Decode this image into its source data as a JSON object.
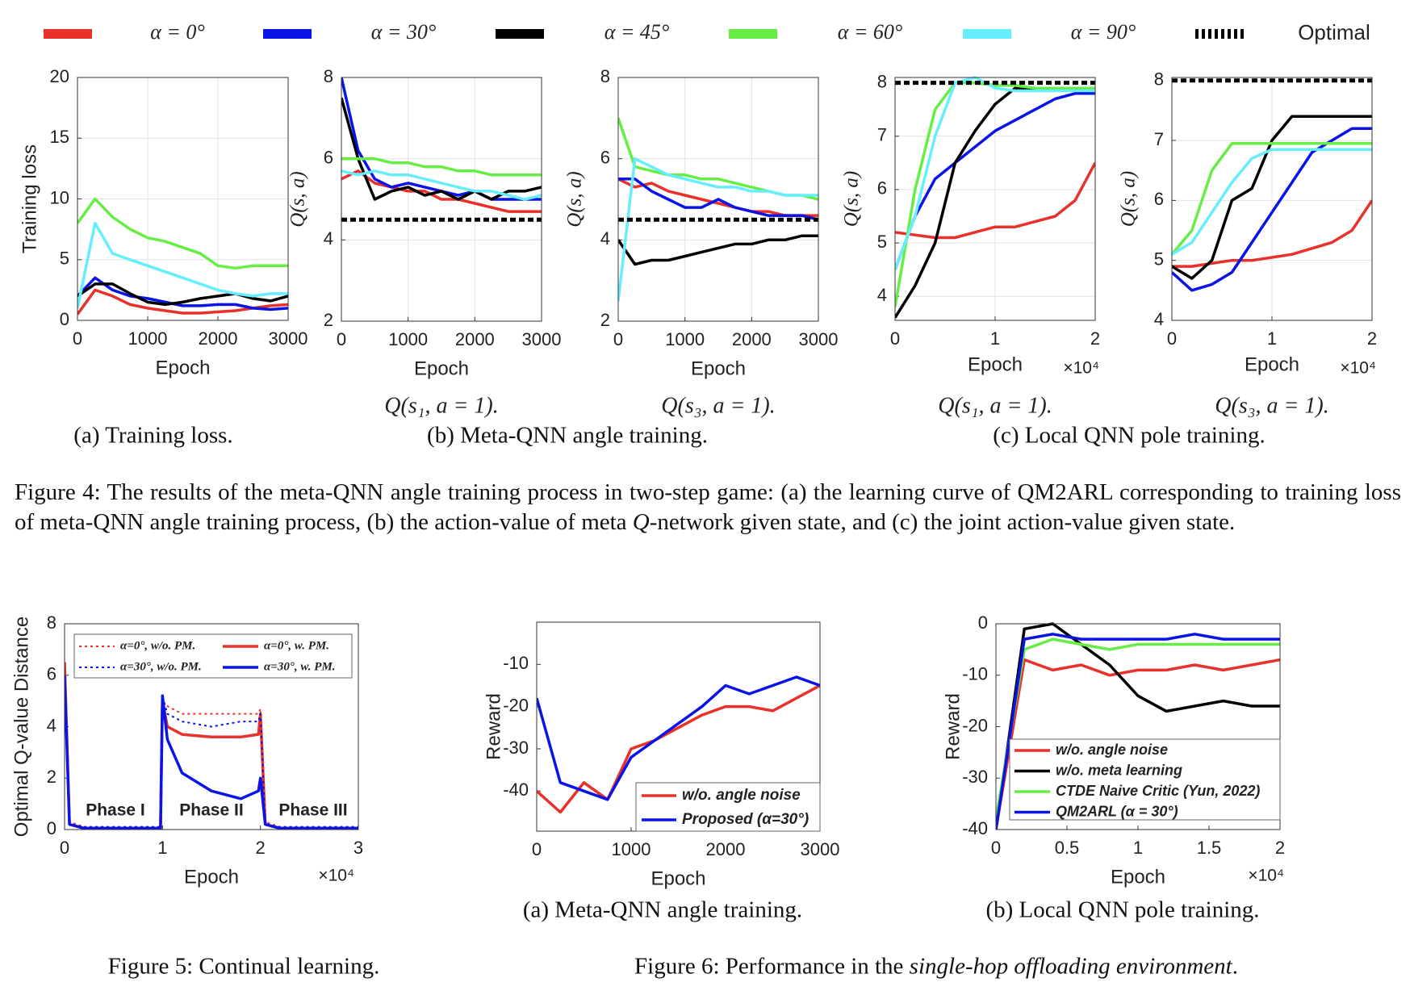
{
  "chart_data": [
    {
      "type": "line",
      "xlabel": "Epoch",
      "ylabel": "Training loss",
      "grid": true,
      "x": [
        0,
        250,
        500,
        750,
        1000,
        1250,
        1500,
        1750,
        2000,
        2250,
        2500,
        2750,
        3000
      ],
      "xlim": [
        0,
        3000
      ],
      "ylim": [
        0,
        20
      ],
      "xticks": [
        0,
        1000,
        2000,
        3000
      ],
      "yticks": [
        0,
        5,
        10,
        15,
        20
      ],
      "series": [
        {
          "name": "α = 0°",
          "color": "#e8312a",
          "values": [
            0.5,
            2.5,
            2,
            1.3,
            1,
            0.8,
            0.6,
            0.6,
            0.7,
            0.8,
            1,
            1.2,
            1.3
          ]
        },
        {
          "name": "α = 30°",
          "color": "#0a14e6",
          "values": [
            2,
            3.5,
            2.5,
            2,
            1.8,
            1.5,
            1.2,
            1.2,
            1.3,
            1.3,
            1,
            0.9,
            1
          ]
        },
        {
          "name": "α = 45°",
          "color": "#000000",
          "values": [
            2,
            3,
            3,
            2.2,
            1.5,
            1.3,
            1.5,
            1.8,
            2,
            2.2,
            1.8,
            1.6,
            2
          ]
        },
        {
          "name": "α = 60°",
          "color": "#66ee44",
          "values": [
            8,
            10,
            8.5,
            7.5,
            6.8,
            6.5,
            6,
            5.5,
            4.5,
            4.3,
            4.5,
            4.5,
            4.5
          ]
        },
        {
          "name": "α = 90°",
          "color": "#66eeff",
          "values": [
            1,
            8,
            5.5,
            5,
            4.5,
            4,
            3.5,
            3,
            2.5,
            2.2,
            2,
            2.2,
            2.2
          ]
        }
      ],
      "legend": "top"
    },
    {
      "type": "line",
      "xlabel": "Epoch",
      "ylabel": "Q(s, a)",
      "subtitle": "Q(s₁, a = 1).",
      "grid": true,
      "x": [
        0,
        250,
        500,
        750,
        1000,
        1250,
        1500,
        1750,
        2000,
        2250,
        2500,
        2750,
        3000
      ],
      "xlim": [
        0,
        3000
      ],
      "ylim": [
        2,
        8
      ],
      "xticks": [
        0,
        1000,
        2000,
        3000
      ],
      "yticks": [
        2,
        4,
        6,
        8
      ],
      "series": [
        {
          "color": "#e8312a",
          "values": [
            5.5,
            5.7,
            5.4,
            5.3,
            5.2,
            5.2,
            5,
            5,
            4.9,
            4.8,
            4.7,
            4.7,
            4.7
          ]
        },
        {
          "color": "#0a14e6",
          "values": [
            8,
            6.2,
            5.5,
            5.3,
            5.4,
            5.3,
            5.2,
            5.1,
            5.2,
            5,
            5,
            5,
            5
          ]
        },
        {
          "color": "#000000",
          "values": [
            7.5,
            6,
            5,
            5.2,
            5.3,
            5.1,
            5.2,
            5,
            5.2,
            5,
            5.2,
            5.2,
            5.3
          ]
        },
        {
          "color": "#66ee44",
          "values": [
            6,
            6,
            6,
            5.9,
            5.9,
            5.8,
            5.8,
            5.7,
            5.7,
            5.6,
            5.6,
            5.6,
            5.6
          ]
        },
        {
          "color": "#66eeff",
          "values": [
            5.7,
            5.6,
            5.7,
            5.6,
            5.6,
            5.5,
            5.4,
            5.3,
            5.2,
            5.2,
            5.1,
            5,
            5.1
          ]
        },
        {
          "name": "Optimal",
          "color": "#000000",
          "style": "dashed",
          "values": [
            4.5,
            4.5,
            4.5,
            4.5,
            4.5,
            4.5,
            4.5,
            4.5,
            4.5,
            4.5,
            4.5,
            4.5,
            4.5
          ]
        }
      ]
    },
    {
      "type": "line",
      "xlabel": "Epoch",
      "ylabel": "Q(s, a)",
      "subtitle": "Q(s₃, a = 1).",
      "grid": true,
      "x": [
        0,
        250,
        500,
        750,
        1000,
        1250,
        1500,
        1750,
        2000,
        2250,
        2500,
        2750,
        3000
      ],
      "xlim": [
        0,
        3000
      ],
      "ylim": [
        2,
        8
      ],
      "xticks": [
        0,
        1000,
        2000,
        3000
      ],
      "yticks": [
        2,
        4,
        6,
        8
      ],
      "series": [
        {
          "color": "#e8312a",
          "values": [
            5.5,
            5.3,
            5.4,
            5.2,
            5.1,
            5,
            4.9,
            4.8,
            4.7,
            4.7,
            4.6,
            4.6,
            4.6
          ]
        },
        {
          "color": "#0a14e6",
          "values": [
            5.5,
            5.5,
            5.2,
            5,
            4.8,
            4.8,
            5,
            4.8,
            4.7,
            4.6,
            4.6,
            4.6,
            4.5
          ]
        },
        {
          "color": "#000000",
          "values": [
            4,
            3.4,
            3.5,
            3.5,
            3.6,
            3.7,
            3.8,
            3.9,
            3.9,
            4,
            4,
            4.1,
            4.1
          ]
        },
        {
          "color": "#66ee44",
          "values": [
            7,
            5.8,
            5.7,
            5.6,
            5.6,
            5.5,
            5.5,
            5.4,
            5.3,
            5.2,
            5.1,
            5.1,
            5
          ]
        },
        {
          "color": "#66eeff",
          "values": [
            2.5,
            6,
            5.8,
            5.6,
            5.5,
            5.4,
            5.3,
            5.3,
            5.2,
            5.2,
            5.1,
            5.1,
            5.1
          ]
        },
        {
          "color": "#000000",
          "style": "dashed",
          "values": [
            4.5,
            4.5,
            4.5,
            4.5,
            4.5,
            4.5,
            4.5,
            4.5,
            4.5,
            4.5,
            4.5,
            4.5,
            4.5
          ]
        }
      ]
    },
    {
      "type": "line",
      "xlabel": "Epoch",
      "x_multiplier": "×10⁴",
      "ylabel": "Q(s, a)",
      "subtitle": "Q(s₁, a = 1).",
      "grid": true,
      "x": [
        0,
        2000,
        4000,
        6000,
        8000,
        10000,
        12000,
        14000,
        16000,
        18000,
        20000
      ],
      "xlim": [
        0,
        20000
      ],
      "ylim": [
        3.55,
        8.1
      ],
      "xticks": [
        0,
        {
          "value": 10000,
          "label": "1"
        },
        {
          "value": 20000,
          "label": "2"
        }
      ],
      "yticks": [
        4,
        5,
        6,
        7,
        8
      ],
      "series": [
        {
          "color": "#e8312a",
          "values": [
            5.2,
            5.15,
            5.1,
            5.1,
            5.2,
            5.3,
            5.3,
            5.4,
            5.5,
            5.8,
            6.5
          ]
        },
        {
          "color": "#0a14e6",
          "values": [
            4.5,
            5.5,
            6.2,
            6.5,
            6.8,
            7.1,
            7.3,
            7.5,
            7.7,
            7.8,
            7.8
          ]
        },
        {
          "color": "#000000",
          "values": [
            3.6,
            4.2,
            5,
            6.5,
            7.1,
            7.6,
            7.9,
            7.9,
            7.9,
            7.9,
            7.9
          ]
        },
        {
          "color": "#66ee44",
          "values": [
            3.8,
            6,
            7.5,
            8,
            8,
            7.95,
            7.95,
            7.9,
            7.9,
            7.9,
            7.9
          ]
        },
        {
          "color": "#66eeff",
          "values": [
            4.5,
            5.5,
            7,
            8,
            8.1,
            7.9,
            7.85,
            7.85,
            7.85,
            7.85,
            7.85
          ]
        },
        {
          "color": "#000000",
          "style": "dashed",
          "values": [
            8,
            8,
            8,
            8,
            8,
            8,
            8,
            8,
            8,
            8,
            8
          ]
        }
      ]
    },
    {
      "type": "line",
      "xlabel": "Epoch",
      "x_multiplier": "×10⁴",
      "ylabel": "Q(s, a)",
      "subtitle": "Q(s₃, a = 1).",
      "grid": true,
      "x": [
        0,
        2000,
        4000,
        6000,
        8000,
        10000,
        12000,
        14000,
        16000,
        18000,
        20000
      ],
      "xlim": [
        0,
        20000
      ],
      "ylim": [
        4,
        8.05
      ],
      "xticks": [
        0,
        {
          "value": 10000,
          "label": "1"
        },
        {
          "value": 20000,
          "label": "2"
        }
      ],
      "yticks": [
        4,
        5,
        6,
        7,
        8
      ],
      "series": [
        {
          "color": "#e8312a",
          "values": [
            4.9,
            4.9,
            4.95,
            5,
            5,
            5.05,
            5.1,
            5.2,
            5.3,
            5.5,
            6
          ]
        },
        {
          "color": "#0a14e6",
          "values": [
            4.8,
            4.5,
            4.6,
            4.8,
            5.3,
            5.8,
            6.3,
            6.8,
            7,
            7.2,
            7.2
          ]
        },
        {
          "color": "#000000",
          "values": [
            4.9,
            4.7,
            5,
            6,
            6.2,
            7,
            7.4,
            7.4,
            7.4,
            7.4,
            7.4
          ]
        },
        {
          "color": "#66ee44",
          "values": [
            5.1,
            5.5,
            6.5,
            6.95,
            6.95,
            6.95,
            6.95,
            6.95,
            6.95,
            6.95,
            6.95
          ]
        },
        {
          "color": "#66eeff",
          "values": [
            5.1,
            5.3,
            5.8,
            6.3,
            6.7,
            6.85,
            6.85,
            6.85,
            6.85,
            6.85,
            6.85
          ]
        },
        {
          "color": "#000000",
          "style": "dashed",
          "values": [
            8,
            8,
            8,
            8,
            8,
            8,
            8,
            8,
            8,
            8,
            8
          ]
        }
      ]
    },
    {
      "type": "line",
      "xlabel": "Epoch",
      "x_multiplier": "×10⁴",
      "ylabel": "Optimal Q-value Distance",
      "grid": false,
      "x": [
        0,
        500,
        2000,
        5000,
        9800,
        10000,
        10500,
        12000,
        15000,
        18000,
        19800,
        20000,
        20500,
        22000,
        25000,
        30000
      ],
      "xlim": [
        0,
        30000
      ],
      "ylim": [
        0,
        8
      ],
      "xticks": [
        0,
        {
          "value": 10000,
          "label": "1"
        },
        {
          "value": 20000,
          "label": "2"
        },
        {
          "value": 30000,
          "label": "3"
        }
      ],
      "yticks": [
        0,
        2,
        4,
        6,
        8
      ],
      "series": [
        {
          "name": "α=0°, w/o. PM.",
          "color": "#e8312a",
          "style": "dotted",
          "values": [
            6.5,
            0.3,
            0.1,
            0.1,
            0.1,
            5,
            4.8,
            4.5,
            4.5,
            4.5,
            4.5,
            4.7,
            0.3,
            0.1,
            0.1,
            0.1
          ]
        },
        {
          "name": "α=0°, w. PM.",
          "color": "#e8312a",
          "values": [
            6.5,
            0.2,
            0.05,
            0.05,
            0.05,
            5,
            4,
            3.7,
            3.6,
            3.6,
            3.7,
            4.5,
            0.2,
            0.05,
            0.05,
            0.05
          ]
        },
        {
          "name": "α=30°, w/o. PM.",
          "color": "#0a14e6",
          "style": "dotted",
          "values": [
            6,
            0.2,
            0.1,
            0.1,
            0.1,
            5.2,
            4.5,
            4.2,
            4,
            4.2,
            4.2,
            4.5,
            0.2,
            0.1,
            0.1,
            0.1
          ]
        },
        {
          "name": "α=30°, w. PM.",
          "color": "#0a14e6",
          "values": [
            6,
            0.2,
            0.05,
            0.05,
            0.05,
            5.2,
            3.5,
            2.2,
            1.5,
            1.2,
            1.5,
            2,
            0.2,
            0.05,
            0.05,
            0.05
          ]
        }
      ],
      "legend": "upper",
      "annotations": [
        "Phase I",
        "Phase II",
        "Phase III"
      ]
    },
    {
      "type": "line",
      "xlabel": "Epoch",
      "ylabel": "Reward",
      "grid": false,
      "x": [
        0,
        250,
        500,
        750,
        1000,
        1250,
        1500,
        1750,
        2000,
        2250,
        2500,
        2750,
        3000
      ],
      "xlim": [
        0,
        3000
      ],
      "ylim": [
        -49.5,
        0
      ],
      "xticks": [
        0,
        1000,
        2000,
        3000
      ],
      "yticks": [
        -40,
        -30,
        -20,
        -10
      ],
      "series": [
        {
          "name": "w/o. angle noise",
          "color": "#e8312a",
          "values": [
            -40,
            -45,
            -38,
            -42,
            -30,
            -28,
            -25,
            -22,
            -20,
            -20,
            -21,
            -18,
            -15
          ]
        },
        {
          "name": "Proposed (α=30°)",
          "color": "#0a14e6",
          "values": [
            -18,
            -38,
            -40,
            -42,
            -32,
            -28,
            -24,
            -20,
            -15,
            -17,
            -15,
            -13,
            -15
          ]
        }
      ],
      "legend": "lower right"
    },
    {
      "type": "line",
      "xlabel": "Epoch",
      "x_multiplier": "×10⁴",
      "ylabel": "Reward",
      "grid": false,
      "x": [
        0,
        2000,
        4000,
        6000,
        8000,
        10000,
        12000,
        14000,
        16000,
        18000,
        20000
      ],
      "xlim": [
        0,
        20000
      ],
      "ylim": [
        -40,
        0
      ],
      "xticks": [
        0,
        {
          "value": 5000,
          "label": "0.5"
        },
        {
          "value": 10000,
          "label": "1"
        },
        {
          "value": 15000,
          "label": "1.5"
        },
        {
          "value": 20000,
          "label": "2"
        }
      ],
      "yticks": [
        -40,
        -30,
        -20,
        -10,
        0
      ],
      "series": [
        {
          "name": "w/o. angle noise",
          "color": "#e8312a",
          "values": [
            -40,
            -7,
            -9,
            -8,
            -10,
            -9,
            -9,
            -8,
            -9,
            -8,
            -7
          ]
        },
        {
          "name": "w/o. meta learning",
          "color": "#000000",
          "values": [
            -40,
            -1,
            0,
            -4,
            -8,
            -14,
            -17,
            -16,
            -15,
            -16,
            -16
          ]
        },
        {
          "name": "CTDE Naive Critic (Yun, 2022)",
          "color": "#66ee44",
          "values": [
            -38,
            -5,
            -3,
            -4,
            -5,
            -4,
            -4,
            -4,
            -4,
            -4,
            -4
          ]
        },
        {
          "name": "QM2ARL (α = 30°)",
          "color": "#0a14e6",
          "values": [
            -40,
            -3,
            -2,
            -3,
            -3,
            -3,
            -3,
            -2,
            -3,
            -3,
            -3
          ]
        }
      ],
      "legend": "lower left"
    }
  ],
  "captions": {
    "fig4_a": "(a) Training loss.",
    "fig4_b": "(b) Meta-QNN angle training.",
    "fig4_c": "(c) Local QNN pole training.",
    "fig4_pre": "Figure 4: The results of the meta-QNN angle training process in two-step game: (a) the learning curve of QM2ARL corresponding to training loss of meta-QNN angle training process, (b) the action-value of meta ",
    "fig4_italic": "Q",
    "fig4_post": "-network given state, and (c) the joint action-value given state.",
    "fig5": "Figure 5: Continual learning.",
    "fig6_a": "(a) Meta-QNN angle training.",
    "fig6_b": "(b) Local QNN pole training.",
    "fig6_pre": "Figure 6: Performance in the ",
    "fig6_italic": "single-hop offloading environment",
    "fig6_post": "."
  }
}
